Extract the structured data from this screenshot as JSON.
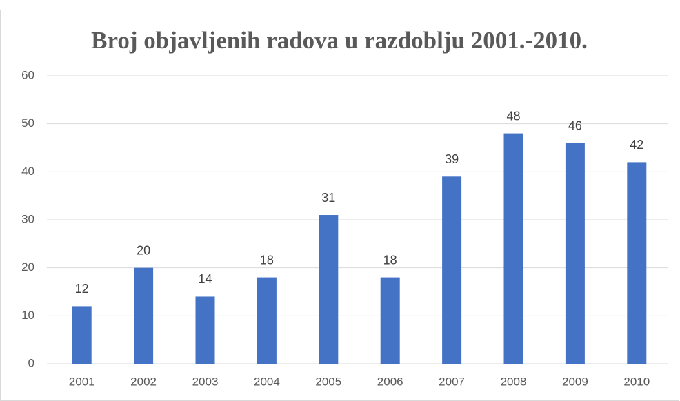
{
  "chart_data": {
    "type": "bar",
    "title": "Broj objavljenih radova u razdoblju 2001.-2010.",
    "categories": [
      "2001",
      "2002",
      "2003",
      "2004",
      "2005",
      "2006",
      "2007",
      "2008",
      "2009",
      "2010"
    ],
    "values": [
      12,
      20,
      14,
      18,
      31,
      18,
      39,
      48,
      46,
      42
    ],
    "color": "#4472c4",
    "ylim": [
      0,
      60
    ],
    "yticks": [
      0,
      10,
      20,
      30,
      40,
      50,
      60
    ],
    "grid": true
  }
}
